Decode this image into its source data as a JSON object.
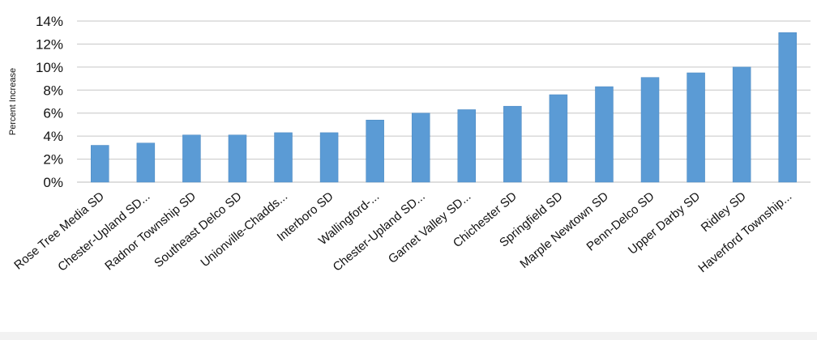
{
  "chart_data": {
    "type": "bar",
    "title": "",
    "xlabel": "",
    "ylabel": "Percent Increase",
    "ylim": [
      0,
      14
    ],
    "yticks": [
      "0%",
      "2%",
      "4%",
      "6%",
      "8%",
      "10%",
      "12%",
      "14%"
    ],
    "grid": true,
    "legend": "none",
    "categories": [
      "Rose Tree Media SD",
      "Chester-Upland SD...",
      "Radnor Township SD",
      "Southeast Delco SD",
      "Unionville-Chadds...",
      "Interboro SD",
      "Wallingford-...",
      "Chester-Upland SD...",
      "Garnet Valley SD...",
      "Chichester SD",
      "Springfield SD",
      "Marple Newtown SD",
      "Penn-Delco SD",
      "Upper Darby SD",
      "Ridley SD",
      "Haverford Township..."
    ],
    "values": [
      3.2,
      3.4,
      4.1,
      4.1,
      4.3,
      4.3,
      5.4,
      6.0,
      6.3,
      6.6,
      7.6,
      8.3,
      9.1,
      9.5,
      10.0,
      13.0
    ],
    "bar_color": "#5b9bd5"
  }
}
